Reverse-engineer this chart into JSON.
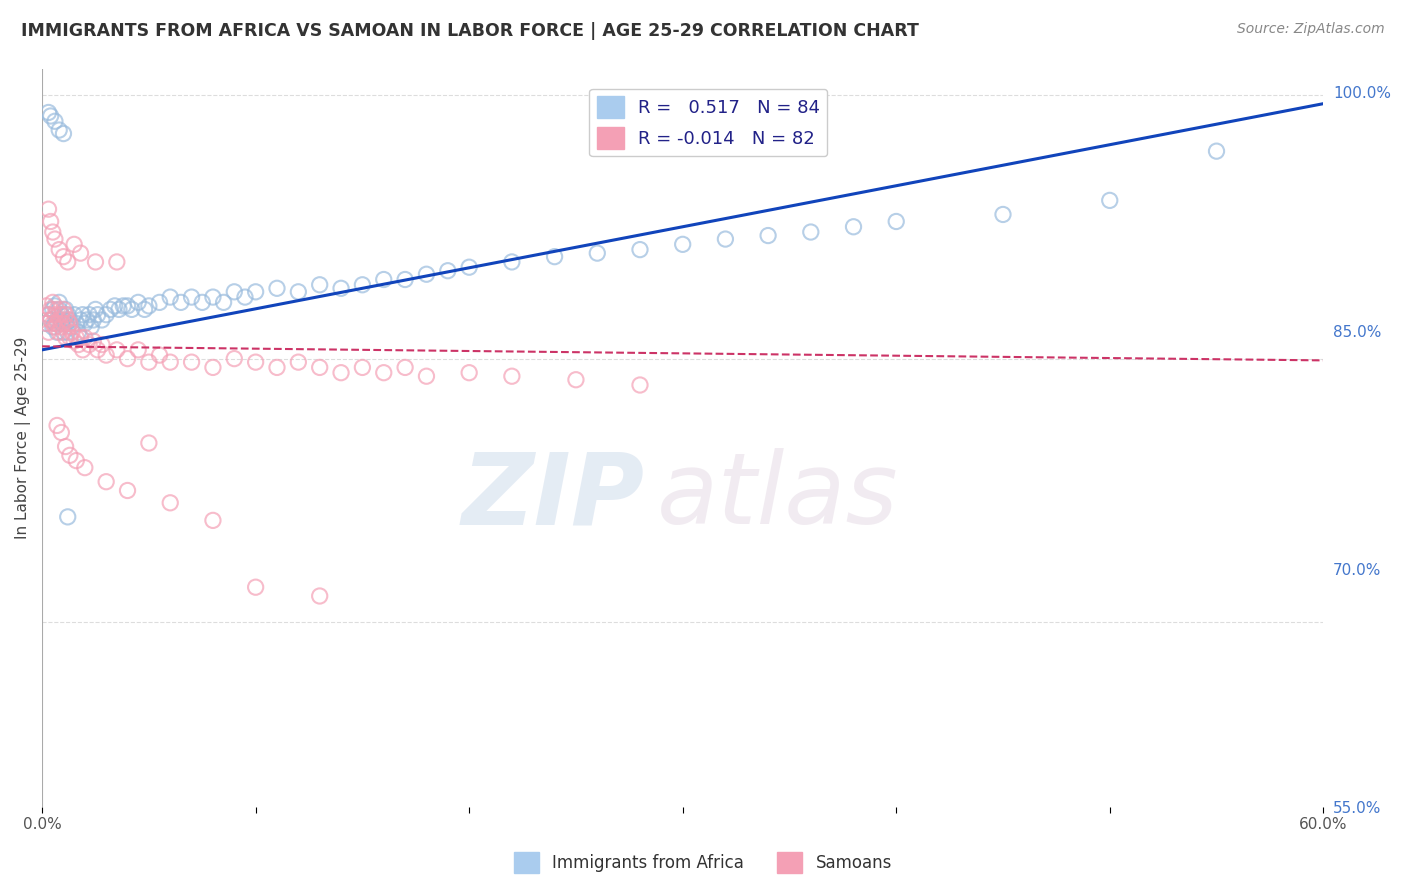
{
  "title": "IMMIGRANTS FROM AFRICA VS SAMOAN IN LABOR FORCE | AGE 25-29 CORRELATION CHART",
  "source": "Source: ZipAtlas.com",
  "ylabel": "In Labor Force | Age 25-29",
  "xlim": [
    0.0,
    0.6
  ],
  "ylim": [
    0.595,
    1.015
  ],
  "xticks": [
    0.0,
    0.1,
    0.2,
    0.3,
    0.4,
    0.5,
    0.6
  ],
  "xticklabels": [
    "0.0%",
    "",
    "",
    "",
    "",
    "",
    "60.0%"
  ],
  "yticks_right": [
    1.0,
    0.85,
    0.7,
    0.55
  ],
  "yticklabels_right": [
    "100.0%",
    "85.0%",
    "70.0%",
    "55.0%"
  ],
  "grid_color": "#dddddd",
  "background_color": "#ffffff",
  "blue_color": "#99bbdd",
  "pink_color": "#f4a0b5",
  "trendline_blue": "#1144bb",
  "trendline_pink": "#cc3366",
  "legend_R_blue": "0.517",
  "legend_N_blue": "84",
  "legend_R_pink": "-0.014",
  "legend_N_pink": "82",
  "watermark_zip": "ZIP",
  "watermark_atlas": "atlas",
  "blue_trend_x0": 0.0,
  "blue_trend_y0": 0.855,
  "blue_trend_x1": 0.6,
  "blue_trend_y1": 0.995,
  "pink_trend_x0": 0.0,
  "pink_trend_y0": 0.857,
  "pink_trend_x1": 0.6,
  "pink_trend_y1": 0.849,
  "blue_scatter_x": [
    0.002,
    0.003,
    0.004,
    0.005,
    0.005,
    0.006,
    0.006,
    0.007,
    0.007,
    0.008,
    0.008,
    0.009,
    0.009,
    0.01,
    0.01,
    0.011,
    0.011,
    0.012,
    0.012,
    0.013,
    0.013,
    0.014,
    0.015,
    0.016,
    0.017,
    0.018,
    0.019,
    0.02,
    0.021,
    0.022,
    0.023,
    0.024,
    0.025,
    0.026,
    0.028,
    0.03,
    0.032,
    0.034,
    0.036,
    0.038,
    0.04,
    0.042,
    0.045,
    0.048,
    0.05,
    0.055,
    0.06,
    0.065,
    0.07,
    0.075,
    0.08,
    0.085,
    0.09,
    0.095,
    0.1,
    0.11,
    0.12,
    0.13,
    0.14,
    0.15,
    0.16,
    0.17,
    0.18,
    0.19,
    0.2,
    0.22,
    0.24,
    0.26,
    0.28,
    0.3,
    0.32,
    0.34,
    0.36,
    0.38,
    0.4,
    0.45,
    0.5,
    0.55,
    0.003,
    0.004,
    0.006,
    0.008,
    0.01,
    0.012
  ],
  "blue_scatter_y": [
    0.87,
    0.875,
    0.872,
    0.868,
    0.878,
    0.87,
    0.88,
    0.865,
    0.872,
    0.878,
    0.882,
    0.87,
    0.875,
    0.865,
    0.872,
    0.87,
    0.878,
    0.865,
    0.875,
    0.87,
    0.872,
    0.868,
    0.875,
    0.87,
    0.865,
    0.872,
    0.875,
    0.87,
    0.872,
    0.875,
    0.868,
    0.872,
    0.878,
    0.875,
    0.872,
    0.875,
    0.878,
    0.88,
    0.878,
    0.88,
    0.88,
    0.878,
    0.882,
    0.878,
    0.88,
    0.882,
    0.885,
    0.882,
    0.885,
    0.882,
    0.885,
    0.882,
    0.888,
    0.885,
    0.888,
    0.89,
    0.888,
    0.892,
    0.89,
    0.892,
    0.895,
    0.895,
    0.898,
    0.9,
    0.902,
    0.905,
    0.908,
    0.91,
    0.912,
    0.915,
    0.918,
    0.92,
    0.922,
    0.925,
    0.928,
    0.932,
    0.94,
    0.968,
    0.99,
    0.988,
    0.985,
    0.98,
    0.978,
    0.76
  ],
  "pink_scatter_x": [
    0.002,
    0.002,
    0.003,
    0.003,
    0.004,
    0.004,
    0.005,
    0.005,
    0.006,
    0.006,
    0.007,
    0.007,
    0.008,
    0.008,
    0.009,
    0.009,
    0.01,
    0.01,
    0.011,
    0.011,
    0.012,
    0.012,
    0.013,
    0.013,
    0.014,
    0.015,
    0.016,
    0.017,
    0.018,
    0.019,
    0.02,
    0.022,
    0.024,
    0.026,
    0.028,
    0.03,
    0.035,
    0.04,
    0.045,
    0.05,
    0.055,
    0.06,
    0.07,
    0.08,
    0.09,
    0.1,
    0.11,
    0.12,
    0.13,
    0.14,
    0.15,
    0.16,
    0.17,
    0.18,
    0.2,
    0.22,
    0.25,
    0.28,
    0.003,
    0.004,
    0.005,
    0.006,
    0.008,
    0.01,
    0.012,
    0.015,
    0.018,
    0.025,
    0.035,
    0.05,
    0.007,
    0.009,
    0.011,
    0.013,
    0.016,
    0.02,
    0.03,
    0.04,
    0.06,
    0.08,
    0.1,
    0.13
  ],
  "pink_scatter_y": [
    0.88,
    0.87,
    0.875,
    0.865,
    0.872,
    0.878,
    0.87,
    0.882,
    0.868,
    0.875,
    0.87,
    0.878,
    0.865,
    0.872,
    0.875,
    0.868,
    0.87,
    0.878,
    0.862,
    0.875,
    0.868,
    0.872,
    0.862,
    0.87,
    0.865,
    0.86,
    0.862,
    0.858,
    0.862,
    0.855,
    0.862,
    0.858,
    0.86,
    0.855,
    0.858,
    0.852,
    0.855,
    0.85,
    0.855,
    0.848,
    0.852,
    0.848,
    0.848,
    0.845,
    0.85,
    0.848,
    0.845,
    0.848,
    0.845,
    0.842,
    0.845,
    0.842,
    0.845,
    0.84,
    0.842,
    0.84,
    0.838,
    0.835,
    0.935,
    0.928,
    0.922,
    0.918,
    0.912,
    0.908,
    0.905,
    0.915,
    0.91,
    0.905,
    0.905,
    0.802,
    0.812,
    0.808,
    0.8,
    0.795,
    0.792,
    0.788,
    0.78,
    0.775,
    0.768,
    0.758,
    0.72,
    0.715
  ]
}
